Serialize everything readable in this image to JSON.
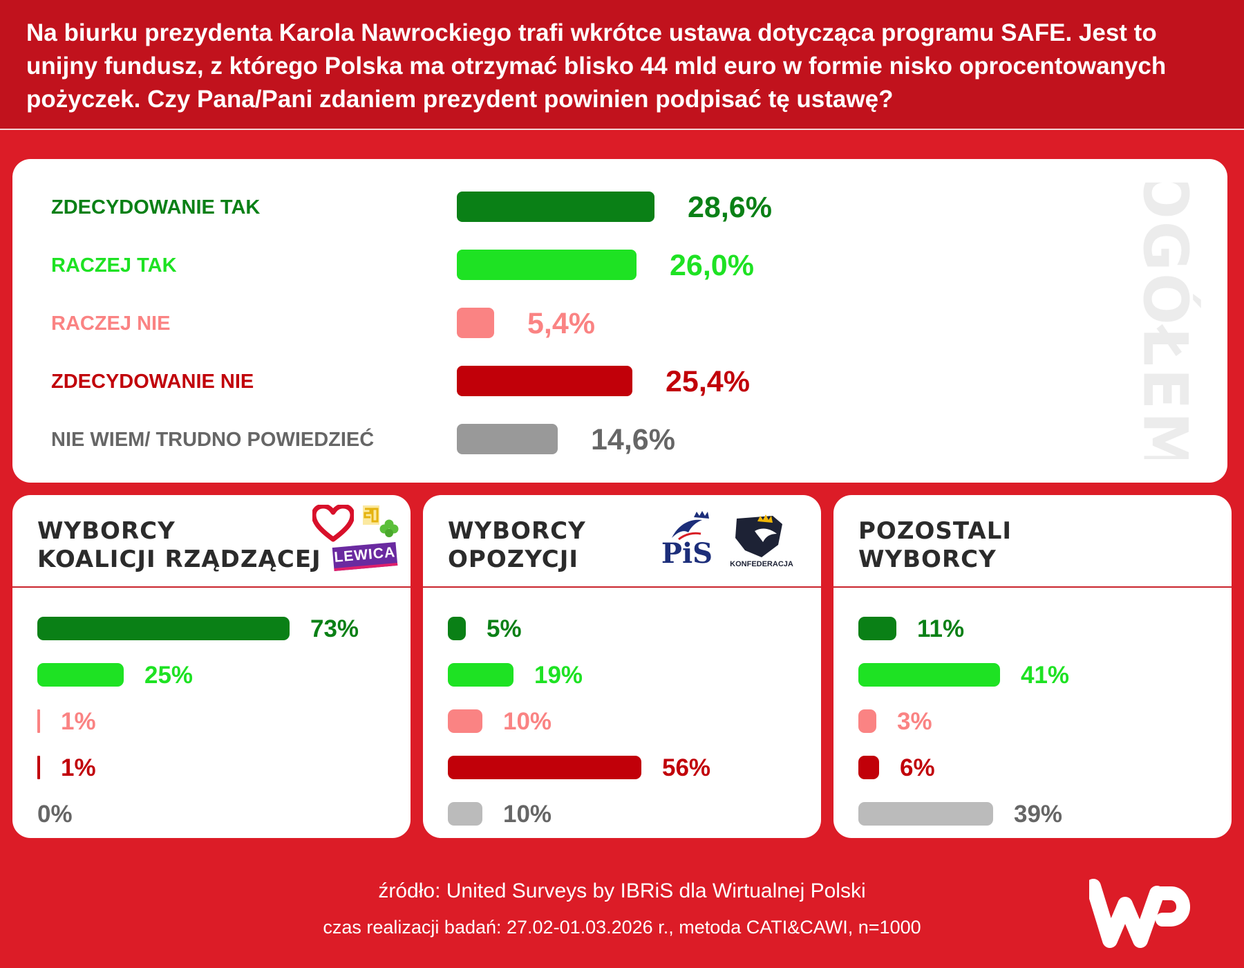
{
  "header": {
    "question": "Na biurku prezydenta Karola Nawrockiego trafi wkrótce ustawa dotycząca programu SAFE. Jest to unijny fundusz, z którego Polska ma otrzymać blisko 44 mld euro w formie nisko oprocentowanych pożyczek. Czy Pana/Pani zdaniem prezydent powinien podpisać tę ustawę?"
  },
  "colors": {
    "strong_yes": "#0a8016",
    "yes": "#1ee223",
    "no": "#fa8383",
    "strong_no": "#c10009",
    "dont_know": "#999999",
    "dont_know_group": "#bbbbbb",
    "background": "#dc1c27",
    "header": "#c1121d"
  },
  "overall": {
    "side_label": "OGÓŁEM"
  },
  "groups": [
    {
      "title_line1": "WYBORCY",
      "title_line2": "KOALICJI RZĄDZĄCEJ",
      "logos": [
        "heart-logo",
        "polska-2050-logo",
        "clover-logo",
        "lewica-logo"
      ],
      "lewica_text": "LEWICA"
    },
    {
      "title_line1": "WYBORCY",
      "title_line2": "OPOZYCJI",
      "logos": [
        "pis-logo",
        "konfederacja-logo"
      ],
      "pis_text": "PiS",
      "konfederacja_text": "KONFEDERACJA"
    },
    {
      "title_line1": "POZOSTALI",
      "title_line2": "WYBORCY",
      "logos": []
    }
  ],
  "chart_data": [
    {
      "type": "bar",
      "orientation": "horizontal",
      "title": "OGÓŁEM",
      "categories": [
        "ZDECYDOWANIE TAK",
        "RACZEJ TAK",
        "RACZEJ NIE",
        "ZDECYDOWANIE NIE",
        "NIE WIEM/ TRUDNO POWIEDZIEĆ"
      ],
      "values": [
        28.6,
        26.0,
        5.4,
        25.4,
        14.6
      ],
      "labels": [
        "28,6%",
        "26,0%",
        "5,4%",
        "25,4%",
        "14,6%"
      ],
      "unit": "%"
    },
    {
      "type": "bar",
      "orientation": "horizontal",
      "title": "WYBORCY KOALICJI RZĄDZĄCEJ",
      "categories": [
        "ZDECYDOWANIE TAK",
        "RACZEJ TAK",
        "RACZEJ NIE",
        "ZDECYDOWANIE NIE",
        "NIE WIEM/ TRUDNO POWIEDZIEĆ"
      ],
      "values": [
        73,
        25,
        1,
        1,
        0
      ],
      "labels": [
        "73%",
        "25%",
        "1%",
        "1%",
        "0%"
      ],
      "unit": "%"
    },
    {
      "type": "bar",
      "orientation": "horizontal",
      "title": "WYBORCY OPOZYCJI",
      "categories": [
        "ZDECYDOWANIE TAK",
        "RACZEJ TAK",
        "RACZEJ NIE",
        "ZDECYDOWANIE NIE",
        "NIE WIEM/ TRUDNO POWIEDZIEĆ"
      ],
      "values": [
        5,
        19,
        10,
        56,
        10
      ],
      "labels": [
        "5%",
        "19%",
        "10%",
        "56%",
        "10%"
      ],
      "unit": "%"
    },
    {
      "type": "bar",
      "orientation": "horizontal",
      "title": "POZOSTALI WYBORCY",
      "categories": [
        "ZDECYDOWANIE TAK",
        "RACZEJ TAK",
        "RACZEJ NIE",
        "ZDECYDOWANIE NIE",
        "NIE WIEM/ TRUDNO POWIEDZIEĆ"
      ],
      "values": [
        11,
        41,
        3,
        6,
        39
      ],
      "labels": [
        "11%",
        "41%",
        "3%",
        "6%",
        "39%"
      ],
      "unit": "%"
    }
  ],
  "footer": {
    "source": "źródło: United Surveys by IBRiS dla Wirtualnej Polski",
    "method": "czas realizacji badań:  27.02-01.03.2026 r., metoda CATI&CAWI, n=1000",
    "brand": "WP"
  }
}
